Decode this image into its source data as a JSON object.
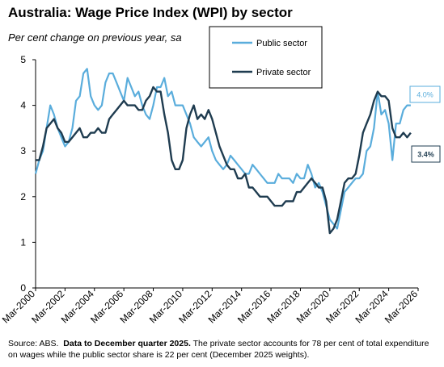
{
  "title": "Australia: Wage Price Index (WPI) by sector",
  "subtitle": "Per cent change on previous year, sa",
  "source": {
    "prefix": "Source: ABS.",
    "bold": "Data to December quarter 2025.",
    "rest": "The private sector accounts for  78 per cent of total expenditure on wages while the public sector share is 22 per cent (December 2025 weights)."
  },
  "chart_data": {
    "type": "line",
    "ylim": [
      0,
      5
    ],
    "yticks": [
      "0",
      "1",
      "2",
      "3",
      "4",
      "5"
    ],
    "xlim": [
      2000.17,
      2026.17
    ],
    "xticks": [
      "Mar-2000",
      "Mar-2002",
      "Mar-2004",
      "Mar-2006",
      "Mar-2008",
      "Mar-2010",
      "Mar-2012",
      "Mar-2014",
      "Mar-2016",
      "Mar-2018",
      "Mar-2020",
      "Mar-2022",
      "Mar-2024",
      "Mar-2026"
    ],
    "legend": [
      "Public sector",
      "Private sector"
    ],
    "colors": {
      "public": "#5aaddc",
      "private": "#1f3c50"
    },
    "callouts": {
      "public": "4.0%",
      "private": "3.4%"
    },
    "series": [
      {
        "name": "Public sector",
        "values": [
          2.5,
          2.8,
          3.0,
          3.5,
          4.0,
          3.8,
          3.5,
          3.3,
          3.1,
          3.2,
          3.5,
          4.1,
          4.2,
          4.7,
          4.8,
          4.2,
          4.0,
          3.9,
          4.0,
          4.5,
          4.7,
          4.7,
          4.5,
          4.3,
          4.1,
          4.6,
          4.4,
          4.2,
          4.3,
          4.0,
          3.8,
          3.7,
          4.0,
          4.4,
          4.4,
          4.6,
          4.2,
          4.3,
          4.0,
          4.0,
          4.0,
          3.8,
          3.6,
          3.3,
          3.2,
          3.1,
          3.2,
          3.3,
          3.0,
          2.8,
          2.7,
          2.6,
          2.7,
          2.9,
          2.8,
          2.7,
          2.6,
          2.5,
          2.5,
          2.7,
          2.6,
          2.5,
          2.4,
          2.3,
          2.3,
          2.3,
          2.5,
          2.4,
          2.4,
          2.4,
          2.3,
          2.5,
          2.4,
          2.4,
          2.7,
          2.5,
          2.2,
          2.3,
          2.1,
          1.8,
          1.5,
          1.4,
          1.3,
          1.7,
          2.1,
          2.2,
          2.3,
          2.4,
          2.4,
          2.5,
          3.0,
          3.1,
          3.5,
          4.3,
          3.8,
          3.9,
          3.6,
          2.8,
          3.6,
          3.6,
          3.9,
          4.0,
          4.0
        ]
      },
      {
        "name": "Private sector",
        "values": [
          2.8,
          2.8,
          3.1,
          3.5,
          3.6,
          3.7,
          3.5,
          3.4,
          3.2,
          3.2,
          3.3,
          3.4,
          3.5,
          3.3,
          3.3,
          3.4,
          3.4,
          3.5,
          3.4,
          3.4,
          3.7,
          3.8,
          3.9,
          4.0,
          4.1,
          4.0,
          4.0,
          4.0,
          3.9,
          3.9,
          4.1,
          4.2,
          4.4,
          4.3,
          4.3,
          3.8,
          3.4,
          2.8,
          2.6,
          2.6,
          2.8,
          3.5,
          3.8,
          4.0,
          3.7,
          3.8,
          3.7,
          3.9,
          3.7,
          3.4,
          3.1,
          2.9,
          2.7,
          2.6,
          2.6,
          2.4,
          2.4,
          2.5,
          2.2,
          2.2,
          2.1,
          2.0,
          2.0,
          2.0,
          1.9,
          1.8,
          1.8,
          1.8,
          1.9,
          1.9,
          1.9,
          2.1,
          2.1,
          2.2,
          2.3,
          2.4,
          2.3,
          2.2,
          2.2,
          1.9,
          1.2,
          1.3,
          1.5,
          1.9,
          2.3,
          2.4,
          2.4,
          2.5,
          2.9,
          3.4,
          3.6,
          3.8,
          4.1,
          4.3,
          4.2,
          4.2,
          4.1,
          3.5,
          3.3,
          3.3,
          3.4,
          3.3,
          3.4
        ]
      }
    ]
  }
}
